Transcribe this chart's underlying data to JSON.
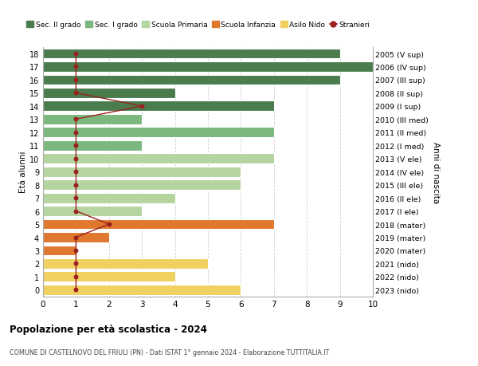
{
  "ages": [
    18,
    17,
    16,
    15,
    14,
    13,
    12,
    11,
    10,
    9,
    8,
    7,
    6,
    5,
    4,
    3,
    2,
    1,
    0
  ],
  "right_labels": [
    "2005 (V sup)",
    "2006 (IV sup)",
    "2007 (III sup)",
    "2008 (II sup)",
    "2009 (I sup)",
    "2010 (III med)",
    "2011 (II med)",
    "2012 (I med)",
    "2013 (V ele)",
    "2014 (IV ele)",
    "2015 (III ele)",
    "2016 (II ele)",
    "2017 (I ele)",
    "2018 (mater)",
    "2019 (mater)",
    "2020 (mater)",
    "2021 (nido)",
    "2022 (nido)",
    "2023 (nido)"
  ],
  "bar_values": [
    9,
    10,
    9,
    4,
    7,
    3,
    7,
    3,
    7,
    6,
    6,
    4,
    3,
    7,
    2,
    1,
    5,
    4,
    6
  ],
  "bar_colors": [
    "#4a7c4e",
    "#4a7c4e",
    "#4a7c4e",
    "#4a7c4e",
    "#4a7c4e",
    "#7ab87e",
    "#7ab87e",
    "#7ab87e",
    "#b5d4a0",
    "#b5d4a0",
    "#b5d4a0",
    "#b5d4a0",
    "#b5d4a0",
    "#e07830",
    "#e07830",
    "#e07830",
    "#f0d060",
    "#f0d060",
    "#f0d060"
  ],
  "stranieri_values": [
    1,
    1,
    1,
    1,
    3,
    1,
    1,
    1,
    1,
    1,
    1,
    1,
    1,
    2,
    1,
    1,
    1,
    1,
    1
  ],
  "title": "Popolazione per età scolastica - 2024",
  "subtitle": "COMUNE DI CASTELNOVO DEL FRIULI (PN) - Dati ISTAT 1° gennaio 2024 - Elaborazione TUTTITALIA.IT",
  "ylabel_left": "Età alunni",
  "ylabel_right": "Anni di nascita",
  "legend_labels": [
    "Sec. II grado",
    "Sec. I grado",
    "Scuola Primaria",
    "Scuola Infanzia",
    "Asilo Nido",
    "Stranieri"
  ],
  "legend_colors": [
    "#4a7c4e",
    "#7ab87e",
    "#b5d4a0",
    "#e07830",
    "#f0d060",
    "#9b2020"
  ],
  "color_stranieri": "#9b2020",
  "xlim": [
    0,
    10
  ],
  "bg_color": "#ffffff",
  "grid_color": "#d0d0d0"
}
